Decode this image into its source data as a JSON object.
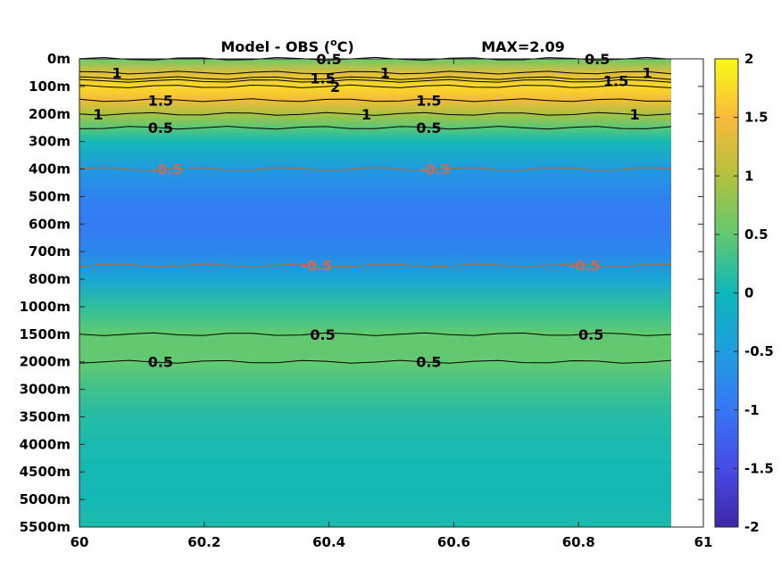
{
  "chart_data": {
    "type": "heatmap",
    "title": "Model - OBS (°C)",
    "title_parts": {
      "text": "Model - OBS (",
      "superscript": "o",
      "unit": "C)"
    },
    "max_annotation": "MAX=2.09",
    "x_ticks": [
      "60",
      "60.2",
      "60.4",
      "60.6",
      "60.8",
      "61"
    ],
    "x_range": [
      60,
      61
    ],
    "data_x_range": [
      60,
      60.95
    ],
    "y_ticks": [
      "0m",
      "100m",
      "200m",
      "300m",
      "400m",
      "500m",
      "600m",
      "700m",
      "800m",
      "1000m",
      "1500m",
      "2000m",
      "3000m",
      "3500m",
      "4000m",
      "4500m",
      "5000m",
      "5500m"
    ],
    "y_axis_direction": "reversed (0m at top)",
    "colorbar": {
      "colormap": "parula",
      "range": [
        -2,
        2
      ],
      "ticks": [
        "2",
        "1.5",
        "1",
        "0.5",
        "0",
        "-0.5",
        "-1",
        "-1.5",
        "-2"
      ]
    },
    "profile": [
      {
        "depth": "0m",
        "value": 0.55
      },
      {
        "depth": "50m",
        "value": 1.3
      },
      {
        "depth": "100m",
        "value": 1.75
      },
      {
        "depth": "150m",
        "value": 1.45
      },
      {
        "depth": "200m",
        "value": 0.95
      },
      {
        "depth": "250m",
        "value": 0.45
      },
      {
        "depth": "300m",
        "value": 0.05
      },
      {
        "depth": "400m",
        "value": -0.55
      },
      {
        "depth": "500m",
        "value": -0.85
      },
      {
        "depth": "600m",
        "value": -0.95
      },
      {
        "depth": "700m",
        "value": -0.8
      },
      {
        "depth": "800m",
        "value": -0.35
      },
      {
        "depth": "1000m",
        "value": 0.2
      },
      {
        "depth": "1500m",
        "value": 0.5
      },
      {
        "depth": "2000m",
        "value": 0.5
      },
      {
        "depth": "3000m",
        "value": 0.3
      },
      {
        "depth": "3500m",
        "value": 0.15
      },
      {
        "depth": "4000m",
        "value": 0.08
      },
      {
        "depth": "4500m",
        "value": 0.05
      },
      {
        "depth": "5000m",
        "value": 0.04
      },
      {
        "depth": "5500m",
        "value": 0.1
      }
    ],
    "contour_labels": [
      {
        "text": "0.5",
        "x": 60.4,
        "depth": "0m"
      },
      {
        "text": "0.5",
        "x": 60.83,
        "depth": "0m"
      },
      {
        "text": "1",
        "x": 60.06,
        "depth": "50m"
      },
      {
        "text": "1",
        "x": 60.49,
        "depth": "50m"
      },
      {
        "text": "1",
        "x": 60.91,
        "depth": "50m"
      },
      {
        "text": "1.5",
        "x": 60.39,
        "depth": "70m"
      },
      {
        "text": "2",
        "x": 60.41,
        "depth": "100m"
      },
      {
        "text": "1.5",
        "x": 60.86,
        "depth": "80m"
      },
      {
        "text": "1.5",
        "x": 60.13,
        "depth": "150m"
      },
      {
        "text": "1.5",
        "x": 60.56,
        "depth": "150m"
      },
      {
        "text": "1",
        "x": 60.03,
        "depth": "200m"
      },
      {
        "text": "1",
        "x": 60.46,
        "depth": "200m"
      },
      {
        "text": "1",
        "x": 60.89,
        "depth": "200m"
      },
      {
        "text": "0.5",
        "x": 60.13,
        "depth": "250m"
      },
      {
        "text": "0.5",
        "x": 60.56,
        "depth": "250m"
      },
      {
        "text": "-0.5",
        "x": 60.14,
        "depth": "400m"
      },
      {
        "text": "-0.5",
        "x": 60.57,
        "depth": "400m"
      },
      {
        "text": "-0.5",
        "x": 60.38,
        "depth": "750m"
      },
      {
        "text": "-0.5",
        "x": 60.81,
        "depth": "750m"
      },
      {
        "text": "0.5",
        "x": 60.39,
        "depth": "1500m"
      },
      {
        "text": "0.5",
        "x": 60.82,
        "depth": "1500m"
      },
      {
        "text": "0.5",
        "x": 60.13,
        "depth": "2000m"
      },
      {
        "text": "0.5",
        "x": 60.56,
        "depth": "2000m"
      }
    ]
  }
}
